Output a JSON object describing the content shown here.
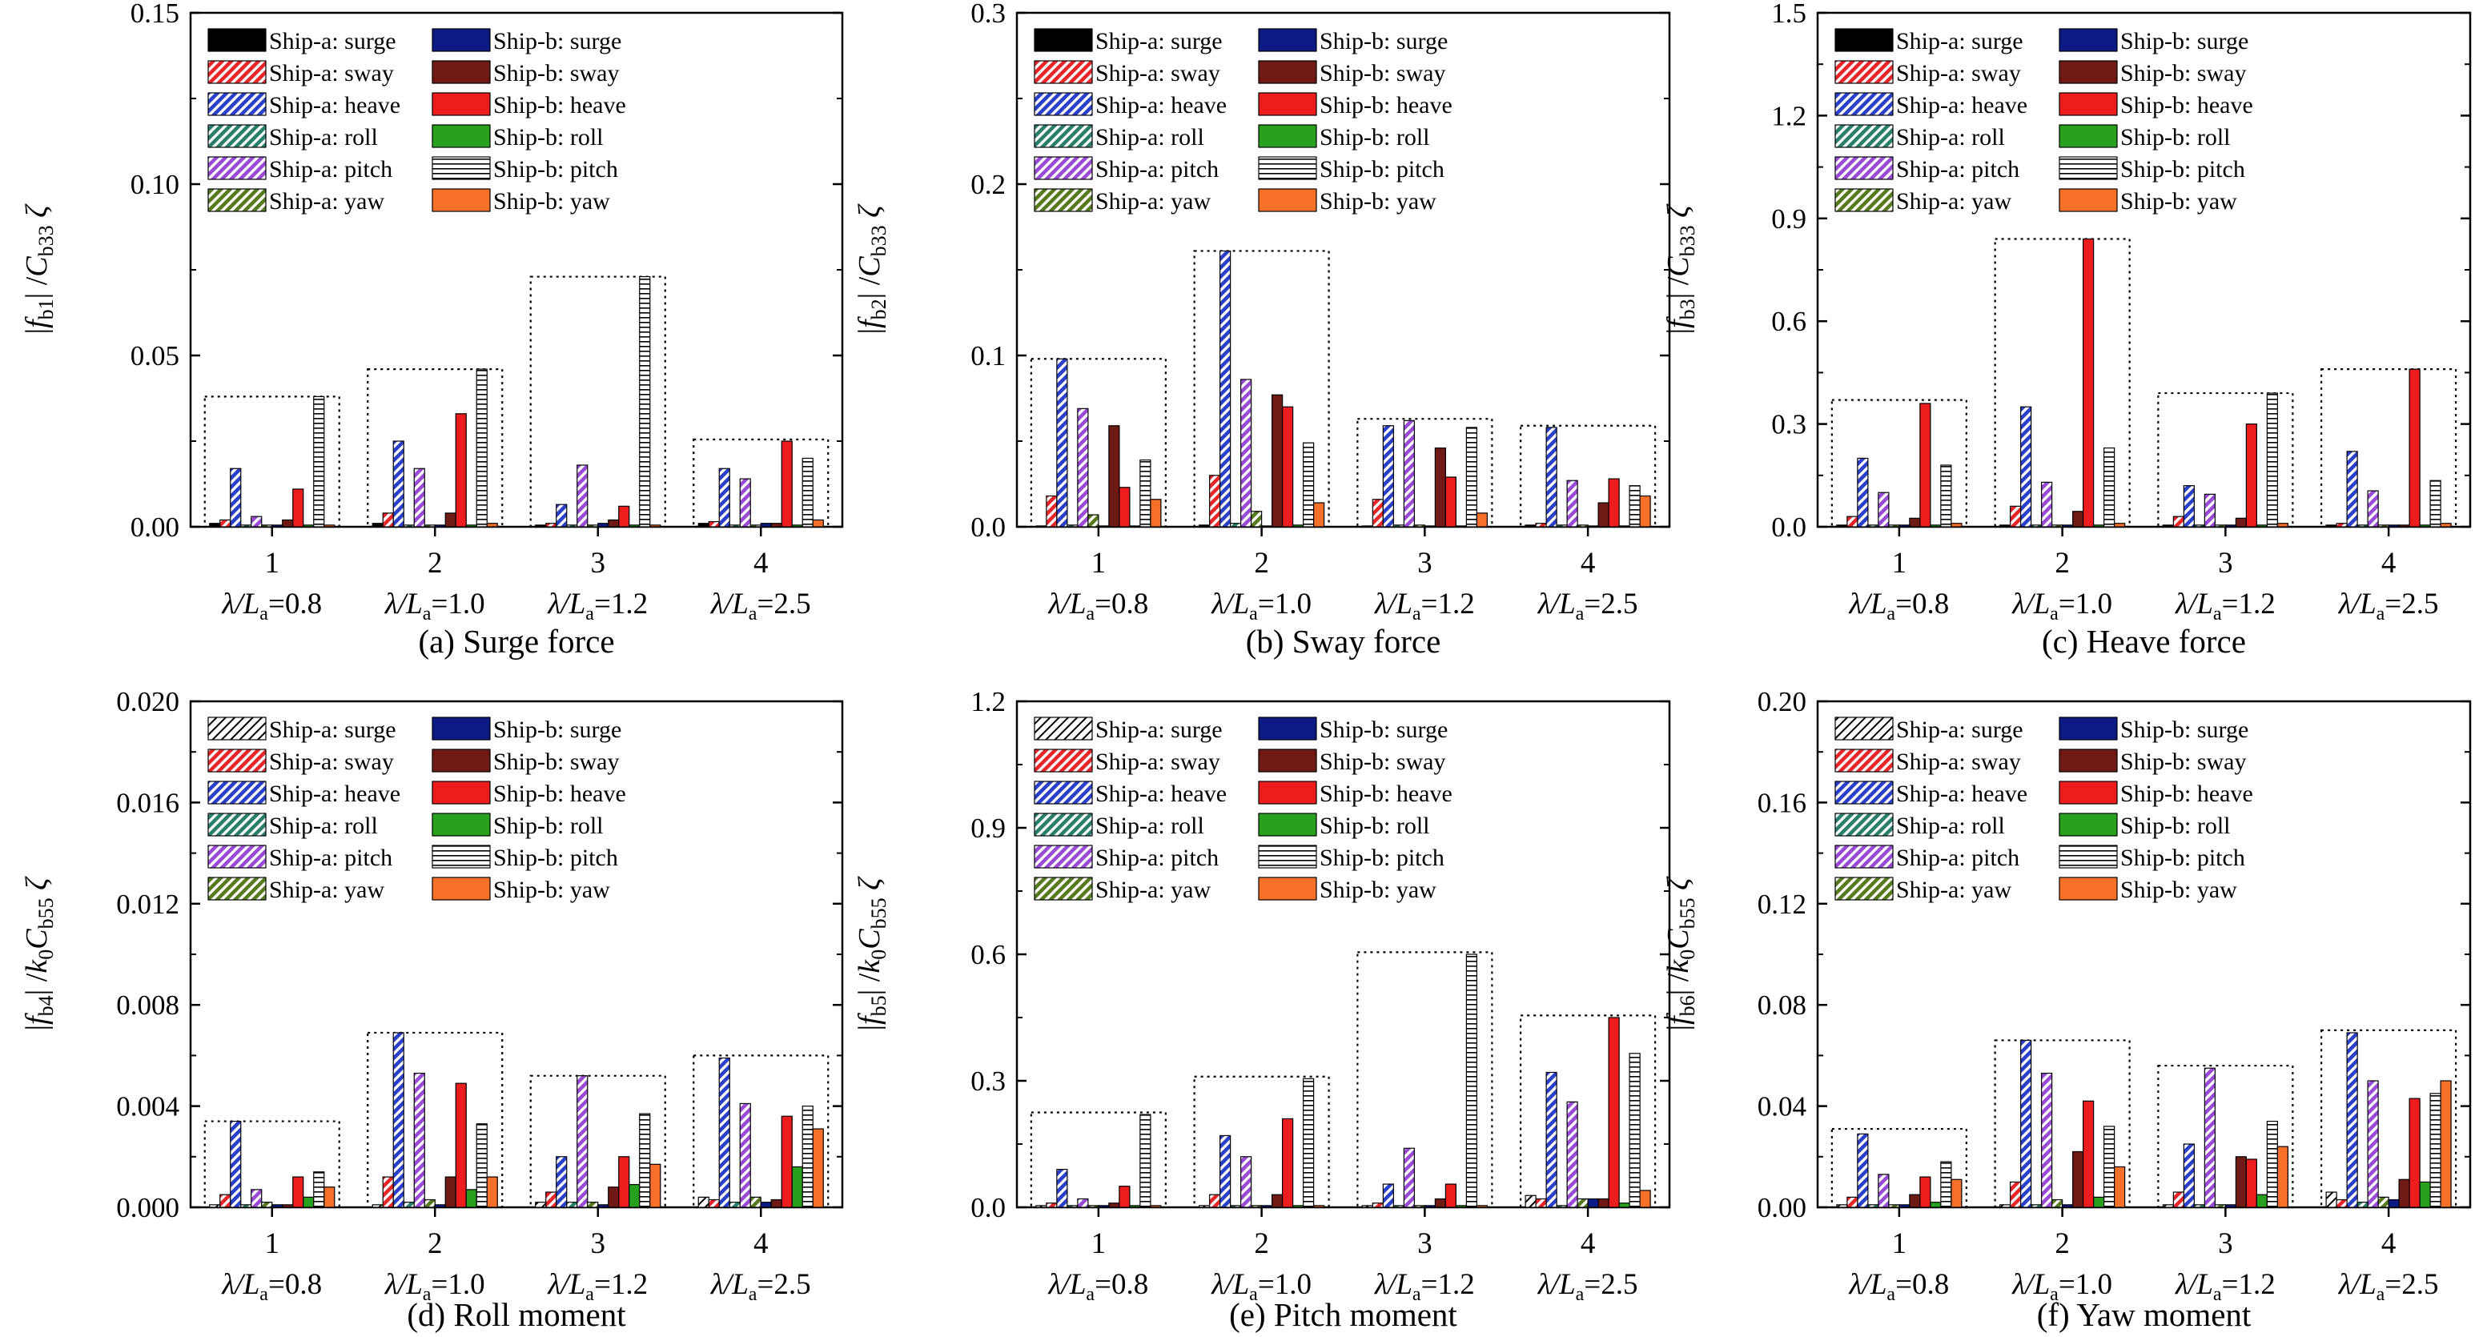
{
  "legend_items": [
    {
      "label": "Ship-a: surge",
      "ship": "a",
      "color": "#000000"
    },
    {
      "label": "Ship-a: sway",
      "ship": "a",
      "color": "#e8262a"
    },
    {
      "label": "Ship-a: heave",
      "ship": "a",
      "color": "#2b40c9"
    },
    {
      "label": "Ship-a: roll",
      "ship": "a",
      "color": "#2a7f6a"
    },
    {
      "label": "Ship-a: pitch",
      "ship": "a",
      "color": "#9a4bd6"
    },
    {
      "label": "Ship-a: yaw",
      "ship": "a",
      "color": "#587a1e"
    },
    {
      "label": "Ship-b: surge",
      "ship": "b",
      "color": "#0c1a86"
    },
    {
      "label": "Ship-b: sway",
      "ship": "b",
      "color": "#6f1a14"
    },
    {
      "label": "Ship-b: heave",
      "ship": "b",
      "color": "#ee1d1d"
    },
    {
      "label": "Ship-b: roll",
      "ship": "b",
      "color": "#27a01d"
    },
    {
      "label": "Ship-b: pitch",
      "ship": "b",
      "color": "#ffffff"
    },
    {
      "label": "Ship-b: yaw",
      "ship": "b",
      "color": "#f6702a"
    }
  ],
  "categories": [
    "1",
    "2",
    "3",
    "4"
  ],
  "category_ratio_labels": [
    "=0.8",
    "=1.0",
    "=1.2",
    "=2.5"
  ],
  "ratio_symbol": "λ/L",
  "ratio_subscript": "a",
  "chart_data": [
    {
      "type": "bar",
      "panel": "a",
      "title": "(a) Surge force",
      "ylabel": {
        "main": "|f",
        "sub1": "b1",
        "mid": "| /C",
        "sub2": "b33",
        "end": "ζ"
      },
      "ylim": [
        0,
        0.15
      ],
      "yticks": [
        "0.00",
        "0.05",
        "0.10",
        "0.15"
      ],
      "ytick_values": [
        0,
        0.05,
        0.1,
        0.15
      ],
      "surge_legend_solid": true,
      "categories": [
        "1",
        "2",
        "3",
        "4"
      ],
      "series": [
        {
          "name": "Ship-a: surge",
          "values": [
            0.001,
            0.001,
            0.0005,
            0.001
          ]
        },
        {
          "name": "Ship-a: sway",
          "values": [
            0.002,
            0.004,
            0.001,
            0.0015
          ]
        },
        {
          "name": "Ship-a: heave",
          "values": [
            0.017,
            0.025,
            0.0065,
            0.017
          ]
        },
        {
          "name": "Ship-a: roll",
          "values": [
            0.0005,
            0.0005,
            0.0005,
            0.0005
          ]
        },
        {
          "name": "Ship-a: pitch",
          "values": [
            0.003,
            0.017,
            0.018,
            0.014
          ]
        },
        {
          "name": "Ship-a: yaw",
          "values": [
            0.0005,
            0.0005,
            0.0005,
            0.0005
          ]
        },
        {
          "name": "Ship-b: surge",
          "values": [
            0.0005,
            0.0005,
            0.001,
            0.001
          ]
        },
        {
          "name": "Ship-b: sway",
          "values": [
            0.002,
            0.004,
            0.002,
            0.001
          ]
        },
        {
          "name": "Ship-b: heave",
          "values": [
            0.011,
            0.033,
            0.006,
            0.025
          ]
        },
        {
          "name": "Ship-b: roll",
          "values": [
            0.0005,
            0.0005,
            0.0005,
            0.0005
          ]
        },
        {
          "name": "Ship-b: pitch",
          "values": [
            0.038,
            0.046,
            0.073,
            0.02
          ]
        },
        {
          "name": "Ship-b: yaw",
          "values": [
            0.0005,
            0.001,
            0.0005,
            0.002
          ]
        }
      ],
      "group_max": [
        0.038,
        0.046,
        0.073,
        0.0255
      ]
    },
    {
      "type": "bar",
      "panel": "b",
      "title": "(b) Sway force",
      "ylabel": {
        "main": "|f",
        "sub1": "b2",
        "mid": "| /C",
        "sub2": "b33",
        "end": "ζ"
      },
      "ylim": [
        0,
        0.3
      ],
      "yticks": [
        "0.0",
        "0.1",
        "0.2",
        "0.3"
      ],
      "ytick_values": [
        0,
        0.1,
        0.2,
        0.3
      ],
      "surge_legend_solid": true,
      "categories": [
        "1",
        "2",
        "3",
        "4"
      ],
      "series": [
        {
          "name": "Ship-a: surge",
          "values": [
            0.0005,
            0.001,
            0.0005,
            0.001
          ]
        },
        {
          "name": "Ship-a: sway",
          "values": [
            0.018,
            0.03,
            0.016,
            0.002
          ]
        },
        {
          "name": "Ship-a: heave",
          "values": [
            0.098,
            0.161,
            0.059,
            0.058
          ]
        },
        {
          "name": "Ship-a: roll",
          "values": [
            0.001,
            0.002,
            0.001,
            0.001
          ]
        },
        {
          "name": "Ship-a: pitch",
          "values": [
            0.069,
            0.086,
            0.062,
            0.027
          ]
        },
        {
          "name": "Ship-a: yaw",
          "values": [
            0.007,
            0.009,
            0.001,
            0.001
          ]
        },
        {
          "name": "Ship-b: surge",
          "values": [
            0.0005,
            0.0005,
            0.0005,
            0.0005
          ]
        },
        {
          "name": "Ship-b: sway",
          "values": [
            0.059,
            0.077,
            0.046,
            0.014
          ]
        },
        {
          "name": "Ship-b: heave",
          "values": [
            0.023,
            0.07,
            0.029,
            0.028
          ]
        },
        {
          "name": "Ship-b: roll",
          "values": [
            0.0005,
            0.001,
            0.0005,
            0.0005
          ]
        },
        {
          "name": "Ship-b: pitch",
          "values": [
            0.039,
            0.049,
            0.058,
            0.024
          ]
        },
        {
          "name": "Ship-b: yaw",
          "values": [
            0.016,
            0.014,
            0.008,
            0.018
          ]
        }
      ],
      "group_max": [
        0.098,
        0.161,
        0.063,
        0.059
      ]
    },
    {
      "type": "bar",
      "panel": "c",
      "title": "(c) Heave force",
      "ylabel": {
        "main": "|f",
        "sub1": "b3",
        "mid": "| /C",
        "sub2": "b33",
        "end": "ζ"
      },
      "ylim": [
        0,
        1.5
      ],
      "yticks": [
        "0.0",
        "0.3",
        "0.6",
        "0.9",
        "1.2",
        "1.5"
      ],
      "ytick_values": [
        0,
        0.3,
        0.6,
        0.9,
        1.2,
        1.5
      ],
      "surge_legend_solid": true,
      "categories": [
        "1",
        "2",
        "3",
        "4"
      ],
      "series": [
        {
          "name": "Ship-a: surge",
          "values": [
            0.005,
            0.005,
            0.005,
            0.005
          ]
        },
        {
          "name": "Ship-a: sway",
          "values": [
            0.03,
            0.06,
            0.03,
            0.01
          ]
        },
        {
          "name": "Ship-a: heave",
          "values": [
            0.2,
            0.35,
            0.12,
            0.22
          ]
        },
        {
          "name": "Ship-a: roll",
          "values": [
            0.005,
            0.005,
            0.005,
            0.005
          ]
        },
        {
          "name": "Ship-a: pitch",
          "values": [
            0.1,
            0.13,
            0.095,
            0.105
          ]
        },
        {
          "name": "Ship-a: yaw",
          "values": [
            0.005,
            0.005,
            0.005,
            0.005
          ]
        },
        {
          "name": "Ship-b: surge",
          "values": [
            0.005,
            0.005,
            0.005,
            0.005
          ]
        },
        {
          "name": "Ship-b: sway",
          "values": [
            0.025,
            0.045,
            0.025,
            0.005
          ]
        },
        {
          "name": "Ship-b: heave",
          "values": [
            0.36,
            0.84,
            0.3,
            0.46
          ]
        },
        {
          "name": "Ship-b: roll",
          "values": [
            0.005,
            0.005,
            0.005,
            0.005
          ]
        },
        {
          "name": "Ship-b: pitch",
          "values": [
            0.18,
            0.23,
            0.39,
            0.135
          ]
        },
        {
          "name": "Ship-b: yaw",
          "values": [
            0.01,
            0.01,
            0.01,
            0.01
          ]
        }
      ],
      "group_max": [
        0.37,
        0.84,
        0.39,
        0.46
      ]
    },
    {
      "type": "bar",
      "panel": "d",
      "title": "(d) Roll moment",
      "ylabel": {
        "main": "|f",
        "sub1": "b4",
        "mid": "| /k",
        "sub1b": "0",
        "mid2": "C",
        "sub2": "b55",
        "end": "ζ"
      },
      "ylim": [
        0,
        0.02
      ],
      "yticks": [
        "0.000",
        "0.004",
        "0.008",
        "0.012",
        "0.016",
        "0.020"
      ],
      "ytick_values": [
        0,
        0.004,
        0.008,
        0.012,
        0.016,
        0.02
      ],
      "surge_legend_solid": false,
      "categories": [
        "1",
        "2",
        "3",
        "4"
      ],
      "series": [
        {
          "name": "Ship-a: surge",
          "values": [
            0.0001,
            0.0001,
            0.0002,
            0.0004
          ]
        },
        {
          "name": "Ship-a: sway",
          "values": [
            0.0005,
            0.0012,
            0.0006,
            0.0003
          ]
        },
        {
          "name": "Ship-a: heave",
          "values": [
            0.0034,
            0.0069,
            0.002,
            0.0059
          ]
        },
        {
          "name": "Ship-a: roll",
          "values": [
            0.0001,
            0.0002,
            0.0002,
            0.0002
          ]
        },
        {
          "name": "Ship-a: pitch",
          "values": [
            0.0007,
            0.0053,
            0.0052,
            0.0041
          ]
        },
        {
          "name": "Ship-a: yaw",
          "values": [
            0.0002,
            0.0003,
            0.0002,
            0.0004
          ]
        },
        {
          "name": "Ship-b: surge",
          "values": [
            0.0001,
            0.0001,
            0.0001,
            0.0002
          ]
        },
        {
          "name": "Ship-b: sway",
          "values": [
            0.0001,
            0.0012,
            0.0008,
            0.0003
          ]
        },
        {
          "name": "Ship-b: heave",
          "values": [
            0.0012,
            0.0049,
            0.002,
            0.0036
          ]
        },
        {
          "name": "Ship-b: roll",
          "values": [
            0.0004,
            0.0007,
            0.0009,
            0.0016
          ]
        },
        {
          "name": "Ship-b: pitch",
          "values": [
            0.0014,
            0.0033,
            0.0037,
            0.004
          ]
        },
        {
          "name": "Ship-b: yaw",
          "values": [
            0.0008,
            0.0012,
            0.0017,
            0.0031
          ]
        }
      ],
      "group_max": [
        0.0034,
        0.0069,
        0.0052,
        0.006
      ]
    },
    {
      "type": "bar",
      "panel": "e",
      "title": "(e) Pitch moment",
      "ylabel": {
        "main": "|f",
        "sub1": "b5",
        "mid": "| /k",
        "sub1b": "0",
        "mid2": "C",
        "sub2": "b55",
        "end": "ζ"
      },
      "ylim": [
        0,
        1.2
      ],
      "yticks": [
        "0.0",
        "0.3",
        "0.6",
        "0.9",
        "1.2"
      ],
      "ytick_values": [
        0,
        0.3,
        0.6,
        0.9,
        1.2
      ],
      "surge_legend_solid": false,
      "categories": [
        "1",
        "2",
        "3",
        "4"
      ],
      "series": [
        {
          "name": "Ship-a: surge",
          "values": [
            0.004,
            0.004,
            0.004,
            0.028
          ]
        },
        {
          "name": "Ship-a: sway",
          "values": [
            0.01,
            0.03,
            0.01,
            0.02
          ]
        },
        {
          "name": "Ship-a: heave",
          "values": [
            0.09,
            0.17,
            0.055,
            0.32
          ]
        },
        {
          "name": "Ship-a: roll",
          "values": [
            0.004,
            0.004,
            0.004,
            0.004
          ]
        },
        {
          "name": "Ship-a: pitch",
          "values": [
            0.02,
            0.12,
            0.14,
            0.25
          ]
        },
        {
          "name": "Ship-a: yaw",
          "values": [
            0.004,
            0.004,
            0.004,
            0.02
          ]
        },
        {
          "name": "Ship-b: surge",
          "values": [
            0.004,
            0.004,
            0.004,
            0.02
          ]
        },
        {
          "name": "Ship-b: sway",
          "values": [
            0.01,
            0.03,
            0.02,
            0.02
          ]
        },
        {
          "name": "Ship-b: heave",
          "values": [
            0.05,
            0.21,
            0.055,
            0.45
          ]
        },
        {
          "name": "Ship-b: roll",
          "values": [
            0.004,
            0.004,
            0.004,
            0.01
          ]
        },
        {
          "name": "Ship-b: pitch",
          "values": [
            0.22,
            0.305,
            0.6,
            0.365
          ]
        },
        {
          "name": "Ship-b: yaw",
          "values": [
            0.004,
            0.004,
            0.004,
            0.04
          ]
        }
      ],
      "group_max": [
        0.225,
        0.31,
        0.605,
        0.455
      ]
    },
    {
      "type": "bar",
      "panel": "f",
      "title": "(f) Yaw moment",
      "ylabel": {
        "main": "|f",
        "sub1": "b6",
        "mid": "| /k",
        "sub1b": "0",
        "mid2": "C",
        "sub2": "b55",
        "end": "ζ"
      },
      "ylim": [
        0,
        0.2
      ],
      "yticks": [
        "0.00",
        "0.04",
        "0.08",
        "0.12",
        "0.16",
        "0.20"
      ],
      "ytick_values": [
        0,
        0.04,
        0.08,
        0.12,
        0.16,
        0.2
      ],
      "surge_legend_solid": false,
      "categories": [
        "1",
        "2",
        "3",
        "4"
      ],
      "series": [
        {
          "name": "Ship-a: surge",
          "values": [
            0.001,
            0.001,
            0.001,
            0.006
          ]
        },
        {
          "name": "Ship-a: sway",
          "values": [
            0.004,
            0.01,
            0.006,
            0.003
          ]
        },
        {
          "name": "Ship-a: heave",
          "values": [
            0.029,
            0.066,
            0.025,
            0.069
          ]
        },
        {
          "name": "Ship-a: roll",
          "values": [
            0.001,
            0.001,
            0.001,
            0.002
          ]
        },
        {
          "name": "Ship-a: pitch",
          "values": [
            0.013,
            0.053,
            0.055,
            0.05
          ]
        },
        {
          "name": "Ship-a: yaw",
          "values": [
            0.001,
            0.003,
            0.001,
            0.004
          ]
        },
        {
          "name": "Ship-b: surge",
          "values": [
            0.001,
            0.001,
            0.001,
            0.003
          ]
        },
        {
          "name": "Ship-b: sway",
          "values": [
            0.005,
            0.022,
            0.02,
            0.011
          ]
        },
        {
          "name": "Ship-b: heave",
          "values": [
            0.012,
            0.042,
            0.019,
            0.043
          ]
        },
        {
          "name": "Ship-b: roll",
          "values": [
            0.002,
            0.004,
            0.005,
            0.01
          ]
        },
        {
          "name": "Ship-b: pitch",
          "values": [
            0.018,
            0.032,
            0.034,
            0.045
          ]
        },
        {
          "name": "Ship-b: yaw",
          "values": [
            0.011,
            0.016,
            0.024,
            0.05
          ]
        }
      ],
      "group_max": [
        0.031,
        0.066,
        0.056,
        0.07
      ]
    }
  ]
}
